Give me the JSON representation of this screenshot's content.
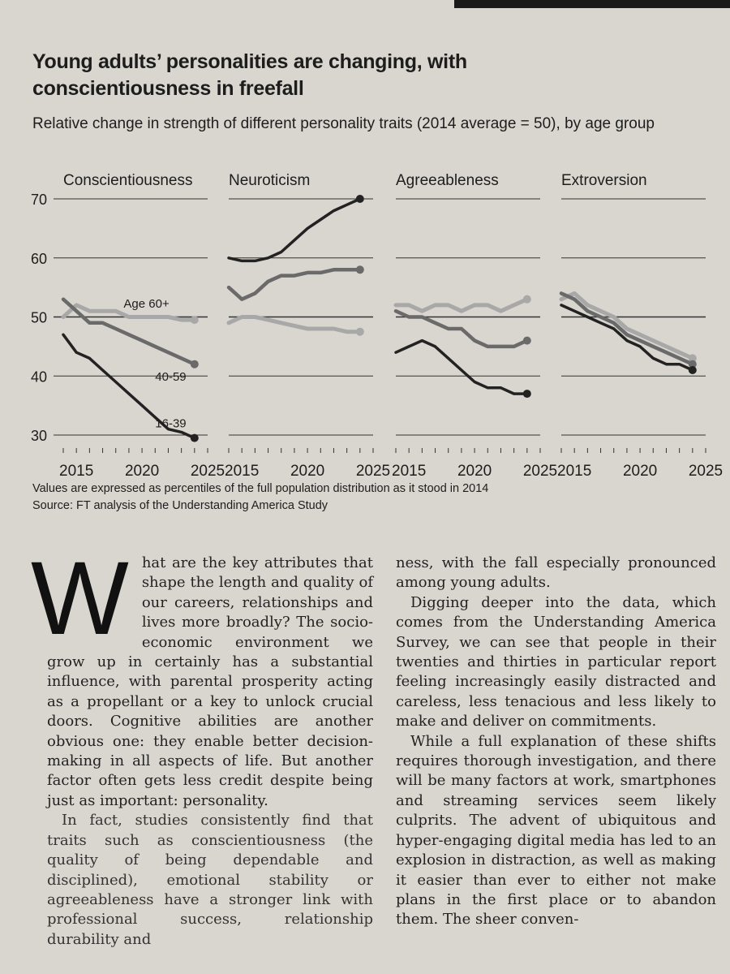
{
  "headline": "Young adults’ personalities are changing, with conscientiousness in freefall",
  "subtitle": "Relative change in strength of different personality traits (2014 average = 50), by age group",
  "footnote": "Values are expressed as percentiles of the full population distribution as it stood in 2014",
  "source": "Source: FT analysis of the Understanding America Study",
  "colors": {
    "ink": "#1d1d1d",
    "young": "#222222",
    "middle": "#6a6a6a",
    "old": "#a8a8a8",
    "grid": "#333333"
  },
  "chart_data": {
    "type": "line",
    "y_ticks": [
      30,
      40,
      50,
      60,
      70
    ],
    "ylim": [
      30,
      70
    ],
    "x_ticks": [
      2015,
      2020,
      2025
    ],
    "xlim": [
      2014,
      2025
    ],
    "panels": [
      {
        "title": "Conscientiousness",
        "series": [
          {
            "name": "Age 60+",
            "x": [
              2014,
              2015,
              2016,
              2017,
              2018,
              2019,
              2020,
              2021,
              2022,
              2023,
              2024
            ],
            "values": [
              50,
              52,
              51,
              51,
              51,
              50,
              50,
              50,
              50,
              49.5,
              49.5
            ]
          },
          {
            "name": "40-59",
            "x": [
              2014,
              2015,
              2016,
              2017,
              2018,
              2019,
              2020,
              2021,
              2022,
              2023,
              2024
            ],
            "values": [
              53,
              51,
              49,
              49,
              48,
              47,
              46,
              45,
              44,
              43,
              42
            ]
          },
          {
            "name": "16-39",
            "x": [
              2014,
              2015,
              2016,
              2017,
              2018,
              2019,
              2020,
              2021,
              2022,
              2023,
              2024
            ],
            "values": [
              47,
              44,
              43,
              41,
              39,
              37,
              35,
              33,
              31,
              30.5,
              29.5
            ]
          }
        ]
      },
      {
        "title": "Neuroticism",
        "series": [
          {
            "name": "Age 60+",
            "x": [
              2014,
              2015,
              2016,
              2017,
              2018,
              2019,
              2020,
              2021,
              2022,
              2023,
              2024
            ],
            "values": [
              49,
              50,
              50,
              49.5,
              49,
              48.5,
              48,
              48,
              48,
              47.5,
              47.5
            ]
          },
          {
            "name": "40-59",
            "x": [
              2014,
              2015,
              2016,
              2017,
              2018,
              2019,
              2020,
              2021,
              2022,
              2023,
              2024
            ],
            "values": [
              55,
              53,
              54,
              56,
              57,
              57,
              57.5,
              57.5,
              58,
              58,
              58
            ]
          },
          {
            "name": "16-39",
            "x": [
              2014,
              2015,
              2016,
              2017,
              2018,
              2019,
              2020,
              2021,
              2022,
              2023,
              2024
            ],
            "values": [
              60,
              59.5,
              59.5,
              60,
              61,
              63,
              65,
              66.5,
              68,
              69,
              70
            ]
          }
        ]
      },
      {
        "title": "Agreeableness",
        "series": [
          {
            "name": "Age 60+",
            "x": [
              2014,
              2015,
              2016,
              2017,
              2018,
              2019,
              2020,
              2021,
              2022,
              2023,
              2024
            ],
            "values": [
              52,
              52,
              51,
              52,
              52,
              51,
              52,
              52,
              51,
              52,
              53
            ]
          },
          {
            "name": "40-59",
            "x": [
              2014,
              2015,
              2016,
              2017,
              2018,
              2019,
              2020,
              2021,
              2022,
              2023,
              2024
            ],
            "values": [
              51,
              50,
              50,
              49,
              48,
              48,
              46,
              45,
              45,
              45,
              46
            ]
          },
          {
            "name": "16-39",
            "x": [
              2014,
              2015,
              2016,
              2017,
              2018,
              2019,
              2020,
              2021,
              2022,
              2023,
              2024
            ],
            "values": [
              44,
              45,
              46,
              45,
              43,
              41,
              39,
              38,
              38,
              37,
              37
            ]
          }
        ]
      },
      {
        "title": "Extroversion",
        "series": [
          {
            "name": "Age 60+",
            "x": [
              2014,
              2015,
              2016,
              2017,
              2018,
              2019,
              2020,
              2021,
              2022,
              2023,
              2024
            ],
            "values": [
              53,
              54,
              52,
              51,
              50,
              48,
              47,
              46,
              45,
              44,
              43
            ]
          },
          {
            "name": "40-59",
            "x": [
              2014,
              2015,
              2016,
              2017,
              2018,
              2019,
              2020,
              2021,
              2022,
              2023,
              2024
            ],
            "values": [
              54,
              53,
              51,
              50,
              49,
              47,
              46,
              45,
              44,
              43,
              42
            ]
          },
          {
            "name": "16-39",
            "x": [
              2014,
              2015,
              2016,
              2017,
              2018,
              2019,
              2020,
              2021,
              2022,
              2023,
              2024
            ],
            "values": [
              52,
              51,
              50,
              49,
              48,
              46,
              45,
              43,
              42,
              42,
              41
            ]
          }
        ]
      }
    ]
  },
  "article": {
    "dropcap": "W",
    "col1_p1": "hat are the key attributes that shape the length and quality of our careers, relationships and lives more broadly? The socio-economic environment we grow up in certainly has a substantial influence, with parental prosperity acting as a propellant or a key to unlock crucial doors. Cognitive abilities are another obvious one: they enable better decision-making in all aspects of life. But another factor often gets less credit despite being just as important: personality.",
    "col1_p2": "In fact, studies consistently find that traits such as conscientiousness (the quality of being dependable and disciplined), emotional stability or agreeableness have a stronger link with professional success, relationship durability and",
    "col2_p1": "ness, with the fall especially pronounced among young adults.",
    "col2_p2": "Digging deeper into the data, which comes from the Understanding America Survey, we can see that people in their twenties and thirties in particular report feeling increasingly easily distracted and careless, less tenacious and less likely to make and deliver on commitments.",
    "col2_p3": "While a full explanation of these shifts requires thorough investigation, and there will be many factors at work, smartphones and streaming services seem likely culprits. The advent of ubiquitous and hyper-engaging digital media has led to an explosion in distraction, as well as making it easier than ever to either not make plans in the first place or to abandon them. The sheer conven-"
  }
}
